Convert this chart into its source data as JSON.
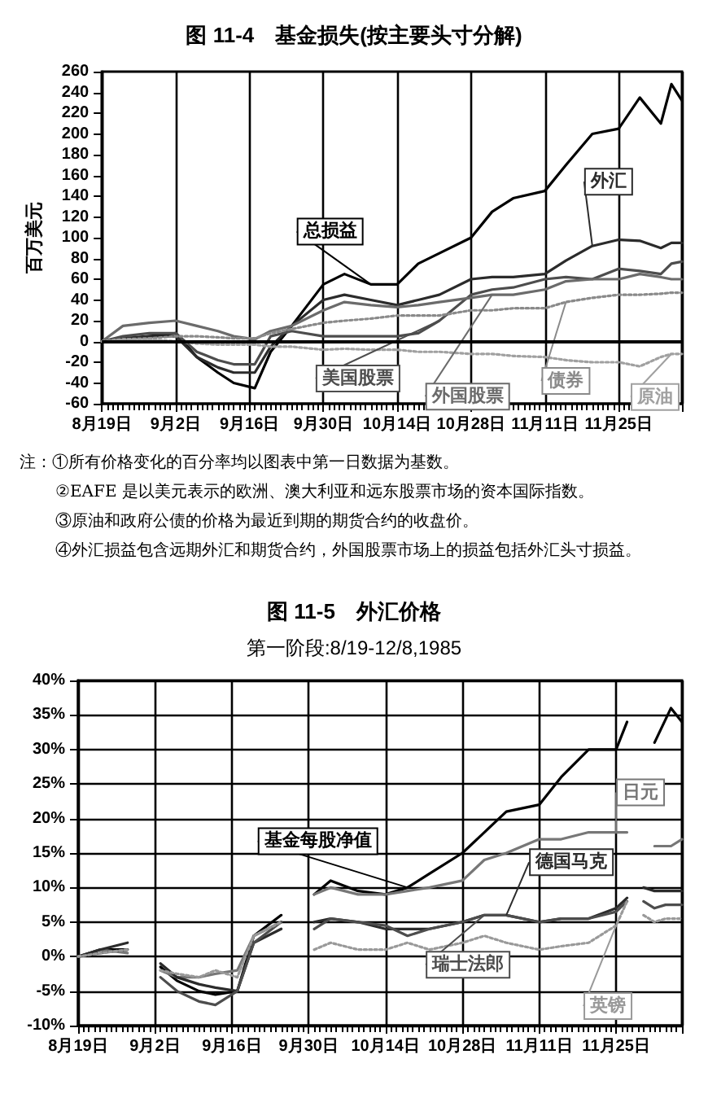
{
  "chart_data": [
    {
      "type": "line",
      "title": "图 11-4　基金损失(按主要头寸分解)",
      "ylabel": "百万美元",
      "x": [
        "--08-19",
        "--08-23",
        "--08-28",
        "--09-02",
        "--09-06",
        "--09-10",
        "--09-13",
        "--09-17",
        "--09-20",
        "--09-24",
        "--09-30",
        "--10-04",
        "--10-09",
        "--10-14",
        "--10-18",
        "--10-22",
        "--10-28",
        "--11-01",
        "--11-05",
        "--11-11",
        "--11-15",
        "--11-20",
        "--11-25",
        "--11-29",
        "--12-03",
        "--12-05",
        "--12-07"
      ],
      "series": [
        {
          "name": "总损益",
          "color": "#000000",
          "values": [
            0,
            2,
            5,
            8,
            -15,
            -30,
            -40,
            -45,
            -10,
            15,
            55,
            65,
            55,
            55,
            75,
            85,
            100,
            125,
            138,
            145,
            170,
            200,
            205,
            235,
            210,
            248,
            232
          ]
        },
        {
          "name": "外汇",
          "color": "#2b2b2b",
          "values": [
            0,
            3,
            5,
            5,
            -15,
            -25,
            -30,
            -30,
            -5,
            15,
            40,
            45,
            40,
            35,
            40,
            45,
            60,
            62,
            62,
            65,
            78,
            92,
            98,
            97,
            90,
            95,
            95
          ]
        },
        {
          "name": "美国股票",
          "color": "#4d4d4d",
          "values": [
            0,
            5,
            8,
            8,
            -10,
            -18,
            -22,
            -22,
            5,
            10,
            5,
            5,
            5,
            5,
            8,
            20,
            45,
            50,
            52,
            60,
            62,
            60,
            70,
            68,
            65,
            75,
            77
          ]
        },
        {
          "name": "外国股票",
          "color": "#6b6b6b",
          "values": [
            0,
            15,
            18,
            20,
            15,
            10,
            5,
            2,
            10,
            15,
            30,
            38,
            35,
            33,
            35,
            38,
            42,
            45,
            45,
            50,
            58,
            60,
            60,
            65,
            62,
            60,
            60
          ]
        },
        {
          "name": "债券",
          "color": "#8a8a8a",
          "line_style": "dotted",
          "values": [
            0,
            2,
            3,
            5,
            5,
            4,
            3,
            3,
            8,
            12,
            18,
            20,
            22,
            25,
            25,
            25,
            30,
            30,
            32,
            32,
            38,
            42,
            45,
            45,
            46,
            47,
            47
          ]
        },
        {
          "name": "原油",
          "color": "#a0a0a0",
          "line_style": "dotted",
          "values": [
            0,
            2,
            2,
            0,
            -2,
            -3,
            -3,
            -3,
            -5,
            -5,
            -8,
            -7,
            -8,
            -8,
            -10,
            -10,
            -12,
            -12,
            -14,
            -15,
            -18,
            -20,
            -20,
            -24,
            -15,
            -12,
            -12
          ]
        }
      ],
      "xlim": [
        "--08-19",
        "--12-07"
      ],
      "xticks": [
        {
          "value": "--08-19",
          "label": "8月19日"
        },
        {
          "value": "--09-02",
          "label": "9月2日"
        },
        {
          "value": "--09-16",
          "label": "9月16日"
        },
        {
          "value": "--09-30",
          "label": "9月30日"
        },
        {
          "value": "--10-14",
          "label": "10月14日"
        },
        {
          "value": "--10-28",
          "label": "10月28日"
        },
        {
          "value": "--11-11",
          "label": "11月11日"
        },
        {
          "value": "--11-25",
          "label": "11月25日"
        }
      ],
      "ylim": [
        -60,
        260
      ],
      "yticks": [
        -60,
        -40,
        -20,
        0,
        20,
        40,
        60,
        80,
        100,
        120,
        140,
        160,
        180,
        200,
        220,
        240,
        260
      ],
      "ref_lines": [
        {
          "axis": "y",
          "value": 0
        }
      ],
      "grid": "x",
      "marker": "none",
      "line_style": "solid",
      "annotations": [
        "注：①所有价格变化的百分率均以图表中第一日数据为基数。",
        "②EAFE 是以美元表示的欧洲、澳大利亚和远东股票市场的资本国际指数。",
        "③原油和政府公债的价格为最近到期的期货合约的收盘价。",
        "④外汇损益包含远期外汇和期货合约，外国股票市场上的损益包括外汇头寸损益。"
      ]
    },
    {
      "type": "line",
      "title": "图 11-5　外汇价格",
      "subtitle": "第一阶段:8/19-12/8,1985",
      "x": [
        "--08-19",
        "--08-23",
        "--08-28",
        "--08-30",
        "--09-03",
        "--09-06",
        "--09-10",
        "--09-13",
        "--09-17",
        "--09-20",
        "--09-25",
        "--09-27",
        "--10-01",
        "--10-04",
        "--10-09",
        "--10-14",
        "--10-18",
        "--10-22",
        "--10-28",
        "--11-01",
        "--11-05",
        "--11-11",
        "--11-15",
        "--11-20",
        "--11-25",
        "--11-27",
        "--11-29",
        "--12-02",
        "--12-05",
        "--12-07"
      ],
      "series": [
        {
          "name": "基金每股净值",
          "color": "#000000",
          "values": [
            0,
            1,
            1,
            null,
            -1.5,
            -3.5,
            -5,
            -5.5,
            -5,
            3,
            6,
            null,
            9,
            11,
            9.5,
            9,
            10,
            12,
            15,
            18,
            21,
            22,
            26,
            30,
            30,
            34,
            null,
            31,
            36,
            34
          ]
        },
        {
          "name": "日元",
          "color": "#777777",
          "values": [
            0,
            1,
            0.5,
            null,
            -2,
            -3,
            -3,
            -2.5,
            -2,
            3,
            5,
            null,
            9,
            10,
            9,
            9,
            9.5,
            10,
            11,
            14,
            15,
            17,
            17,
            18,
            18,
            18,
            null,
            16,
            16,
            17
          ]
        },
        {
          "name": "德国马克",
          "color": "#2b2b2b",
          "x": [
            "--08-19",
            "--08-23",
            "--08-28",
            "--08-30",
            "--09-03",
            "--09-06",
            "--09-10",
            "--09-13",
            "--09-17",
            "--09-20",
            "--09-25",
            "--09-27",
            "--10-01",
            "--10-04",
            "--10-09",
            "--10-14",
            "--10-18",
            "--10-22",
            "--10-28",
            "--11-01",
            "--11-05",
            "--11-11",
            "--11-15",
            "--11-20",
            "--11-25",
            "--11-27",
            "--11-28",
            "--11-30",
            "--12-02",
            "--12-04",
            "--12-07"
          ],
          "values": [
            0,
            1,
            2,
            null,
            -1,
            -3,
            -4,
            -4.5,
            -5,
            2,
            4,
            null,
            5,
            5.5,
            5,
            4,
            4,
            4,
            5,
            6,
            6,
            5,
            5.5,
            5.5,
            7,
            8.5,
            null,
            10,
            9.5,
            9.5,
            9.5
          ]
        },
        {
          "name": "瑞士法郎",
          "color": "#4d4d4d",
          "x": [
            "--08-19",
            "--08-23",
            "--08-28",
            "--08-30",
            "--09-03",
            "--09-06",
            "--09-10",
            "--09-13",
            "--09-17",
            "--09-20",
            "--09-25",
            "--09-27",
            "--10-01",
            "--10-04",
            "--10-09",
            "--10-14",
            "--10-18",
            "--10-22",
            "--10-28",
            "--11-01",
            "--11-05",
            "--11-11",
            "--11-15",
            "--11-20",
            "--11-25",
            "--11-27",
            "--11-28",
            "--11-30",
            "--12-02",
            "--12-04",
            "--12-07"
          ],
          "values": [
            0,
            0.5,
            1,
            null,
            -3,
            -5,
            -6.5,
            -7,
            -5,
            2,
            5,
            null,
            4,
            5.5,
            5,
            4.5,
            3,
            4,
            5,
            6,
            6,
            5,
            5.5,
            5.5,
            6.5,
            8,
            null,
            8,
            7,
            7.5,
            7.5
          ]
        },
        {
          "name": "英镑",
          "color": "#999999",
          "line_style": "dotted",
          "x": [
            "--08-19",
            "--08-23",
            "--08-28",
            "--08-30",
            "--09-03",
            "--09-06",
            "--09-10",
            "--09-13",
            "--09-17",
            "--09-20",
            "--09-25",
            "--09-27",
            "--10-01",
            "--10-04",
            "--10-09",
            "--10-14",
            "--10-18",
            "--10-22",
            "--10-28",
            "--11-01",
            "--11-05",
            "--11-11",
            "--11-15",
            "--11-20",
            "--11-25",
            "--11-27",
            "--11-28",
            "--11-30",
            "--12-02",
            "--12-04",
            "--12-07"
          ],
          "values": [
            0,
            0.5,
            1,
            null,
            -2,
            -2.5,
            -3,
            -2,
            -3,
            3,
            5,
            null,
            1,
            2,
            1,
            1,
            2,
            1,
            2,
            3,
            2,
            1,
            1.5,
            2,
            4.5,
            8,
            null,
            6,
            5,
            5.5,
            5.5
          ]
        }
      ],
      "xlim": [
        "--08-19",
        "--12-07"
      ],
      "xticks": [
        {
          "value": "--08-19",
          "label": "8月19日"
        },
        {
          "value": "--09-02",
          "label": "9月2日"
        },
        {
          "value": "--09-16",
          "label": "9月16日"
        },
        {
          "value": "--09-30",
          "label": "9月30日"
        },
        {
          "value": "--10-14",
          "label": "10月14日"
        },
        {
          "value": "--10-28",
          "label": "10月28日"
        },
        {
          "value": "--11-11",
          "label": "11月11日"
        },
        {
          "value": "--11-25",
          "label": "11月25日"
        }
      ],
      "ylim": [
        -10,
        40
      ],
      "yticks": [
        {
          "value": -10,
          "label": "-10%"
        },
        {
          "value": -5,
          "label": "-5%"
        },
        {
          "value": 0,
          "label": "0%"
        },
        {
          "value": 5,
          "label": "5%"
        },
        {
          "value": 10,
          "label": "10%"
        },
        {
          "value": 15,
          "label": "15%"
        },
        {
          "value": 20,
          "label": "20%"
        },
        {
          "value": 25,
          "label": "25%"
        },
        {
          "value": 30,
          "label": "30%"
        },
        {
          "value": 35,
          "label": "35%"
        },
        {
          "value": 40,
          "label": "40%"
        }
      ],
      "grid": true,
      "marker": "none",
      "line_style": "solid"
    }
  ]
}
